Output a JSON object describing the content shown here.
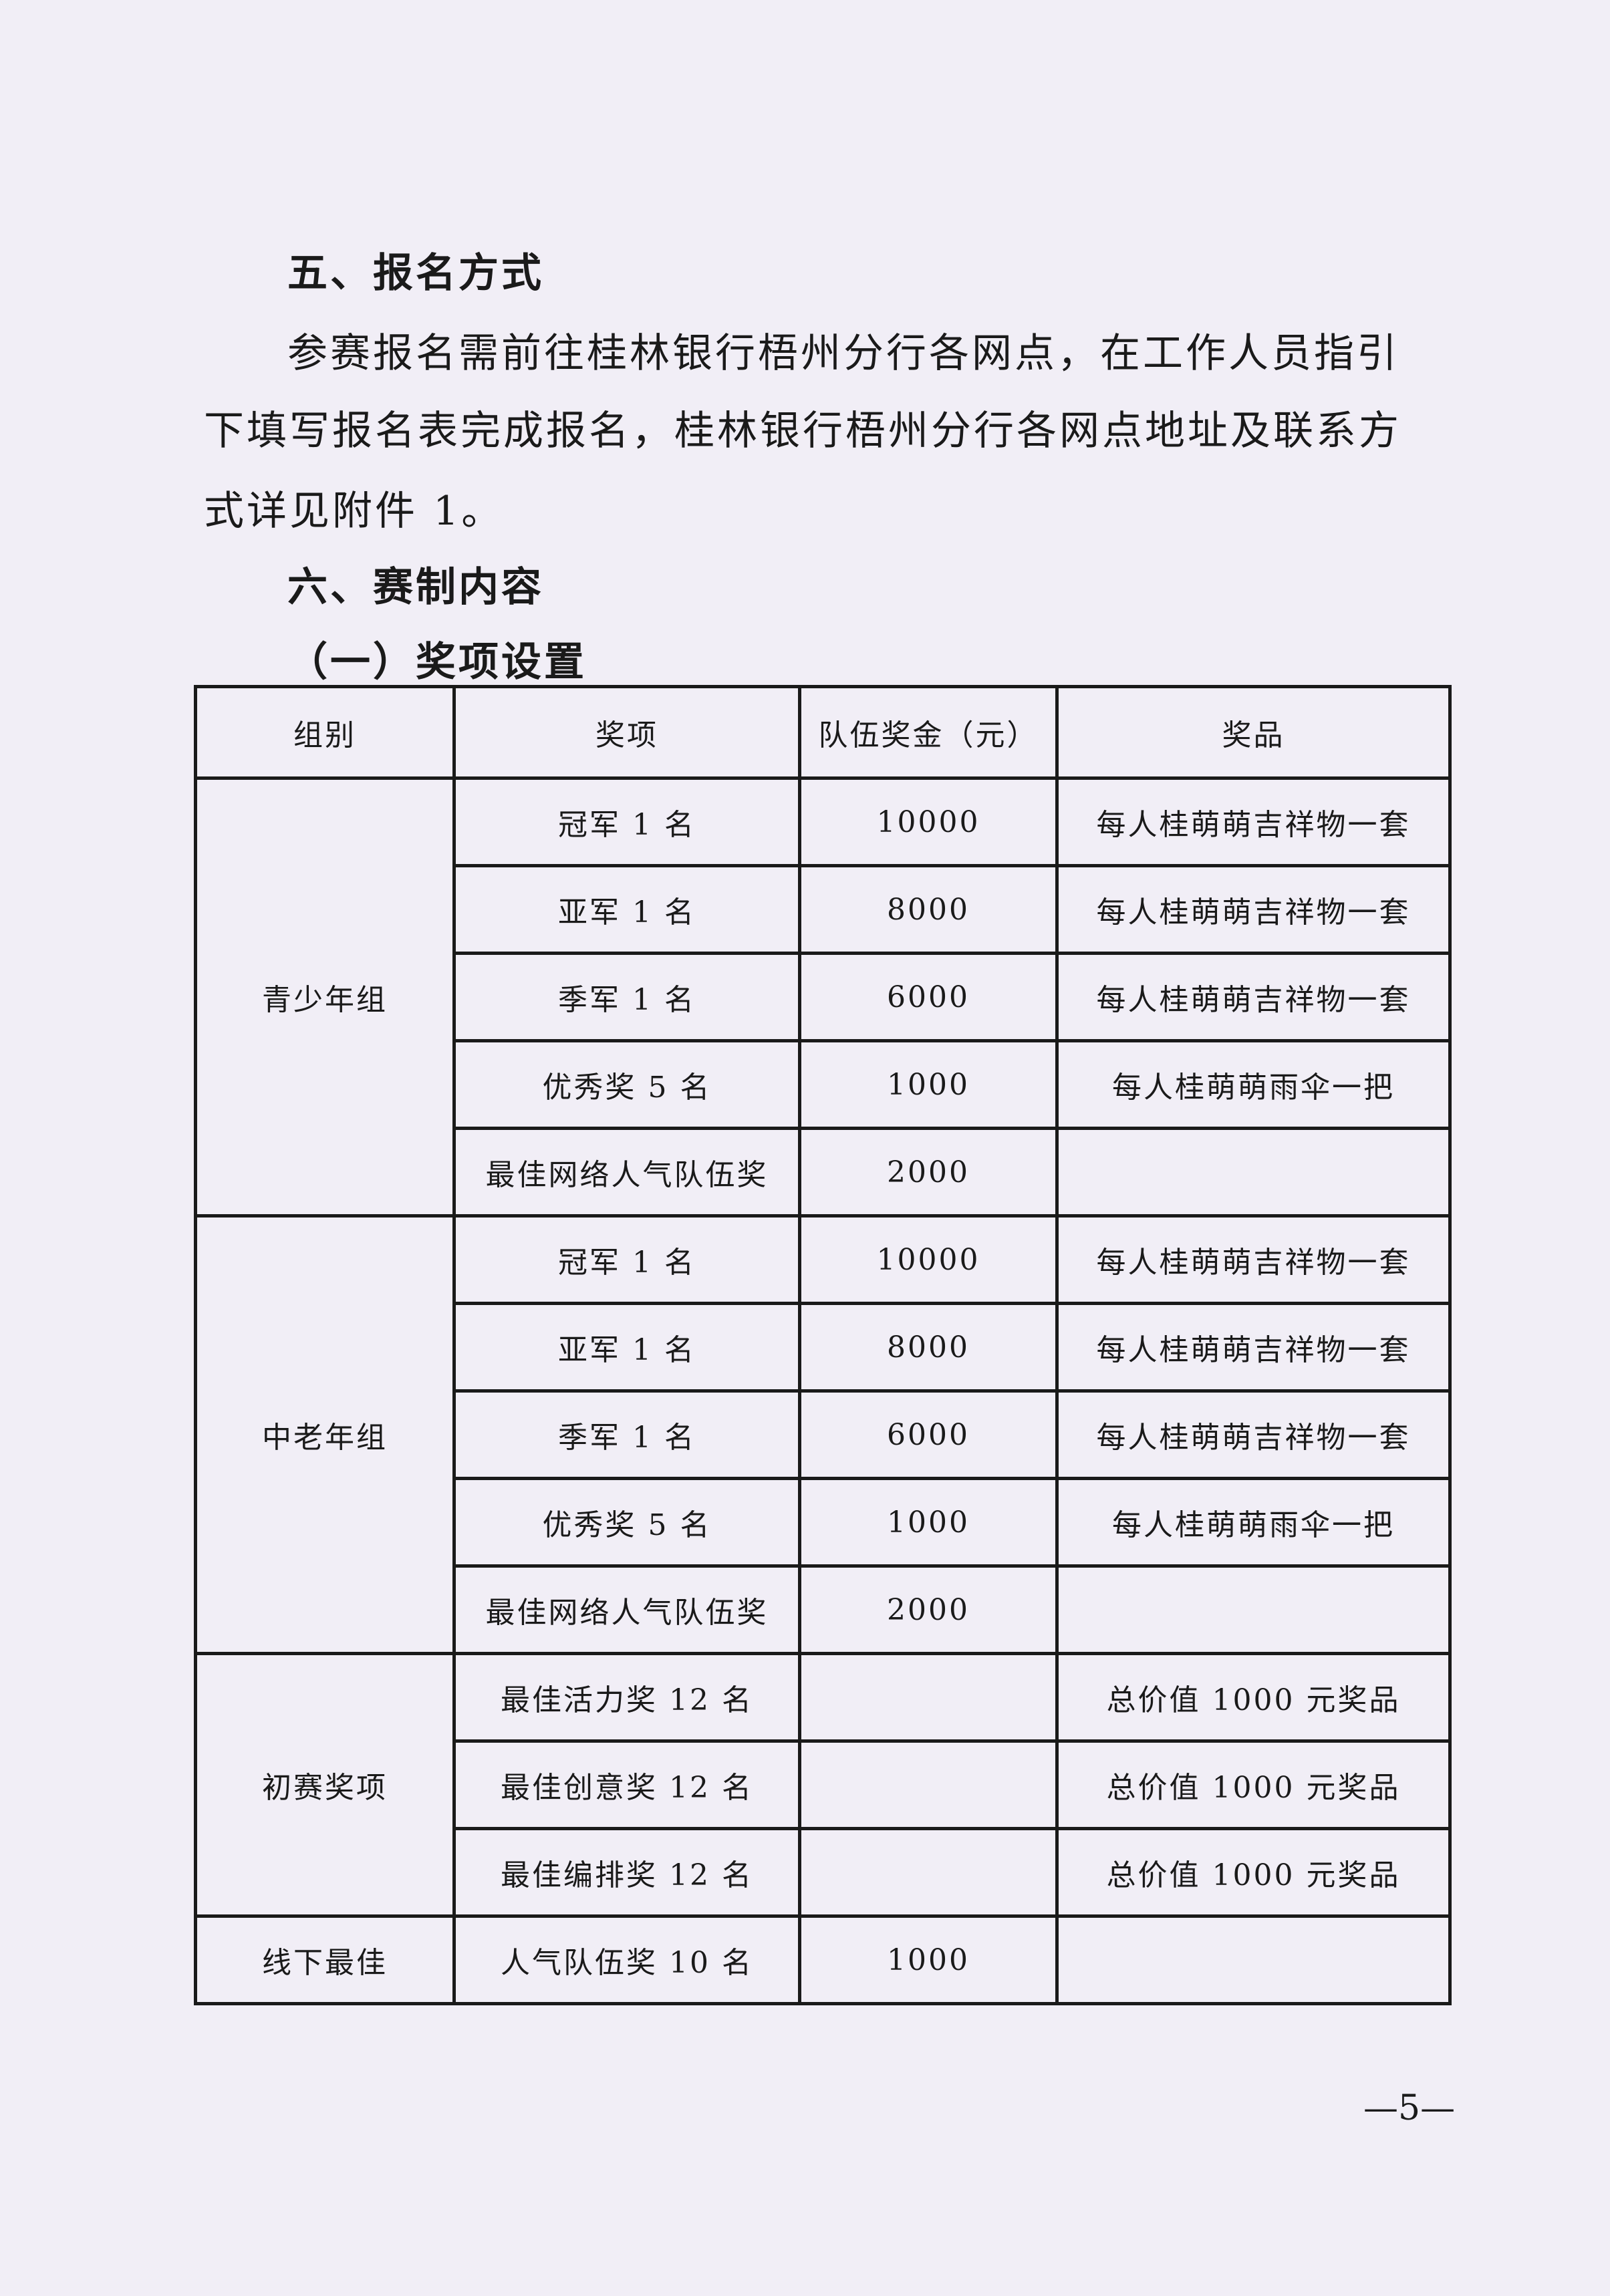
{
  "section5": {
    "heading": "五、报名方式",
    "lines": [
      "参赛报名需前往桂林银行梧州分行各网点，在工作人员指引",
      "下填写报名表完成报名，桂林银行梧州分行各网点地址及联系方",
      "式详见附件 1。"
    ]
  },
  "section6": {
    "heading": "六、赛制内容",
    "sub": "（一）奖项设置"
  },
  "table": {
    "headers": [
      "组别",
      "奖项",
      "队伍奖金（元）",
      "奖品"
    ],
    "groups": [
      {
        "name": "青少年组",
        "rows": [
          [
            "冠军 1 名",
            "10000",
            "每人桂萌萌吉祥物一套"
          ],
          [
            "亚军 1 名",
            "8000",
            "每人桂萌萌吉祥物一套"
          ],
          [
            "季军 1 名",
            "6000",
            "每人桂萌萌吉祥物一套"
          ],
          [
            "优秀奖 5 名",
            "1000",
            "每人桂萌萌雨伞一把"
          ],
          [
            "最佳网络人气队伍奖",
            "2000",
            ""
          ]
        ]
      },
      {
        "name": "中老年组",
        "rows": [
          [
            "冠军 1 名",
            "10000",
            "每人桂萌萌吉祥物一套"
          ],
          [
            "亚军 1 名",
            "8000",
            "每人桂萌萌吉祥物一套"
          ],
          [
            "季军 1 名",
            "6000",
            "每人桂萌萌吉祥物一套"
          ],
          [
            "优秀奖 5 名",
            "1000",
            "每人桂萌萌雨伞一把"
          ],
          [
            "最佳网络人气队伍奖",
            "2000",
            ""
          ]
        ]
      },
      {
        "name": "初赛奖项",
        "rows": [
          [
            "最佳活力奖 12 名",
            "",
            "总价值 1000 元奖品"
          ],
          [
            "最佳创意奖 12 名",
            "",
            "总价值 1000 元奖品"
          ],
          [
            "最佳编排奖 12 名",
            "",
            "总价值 1000 元奖品"
          ]
        ]
      },
      {
        "name": "线下最佳",
        "rows": [
          [
            "人气队伍奖 10 名",
            "1000",
            ""
          ]
        ]
      }
    ]
  },
  "page_number": "—5—"
}
